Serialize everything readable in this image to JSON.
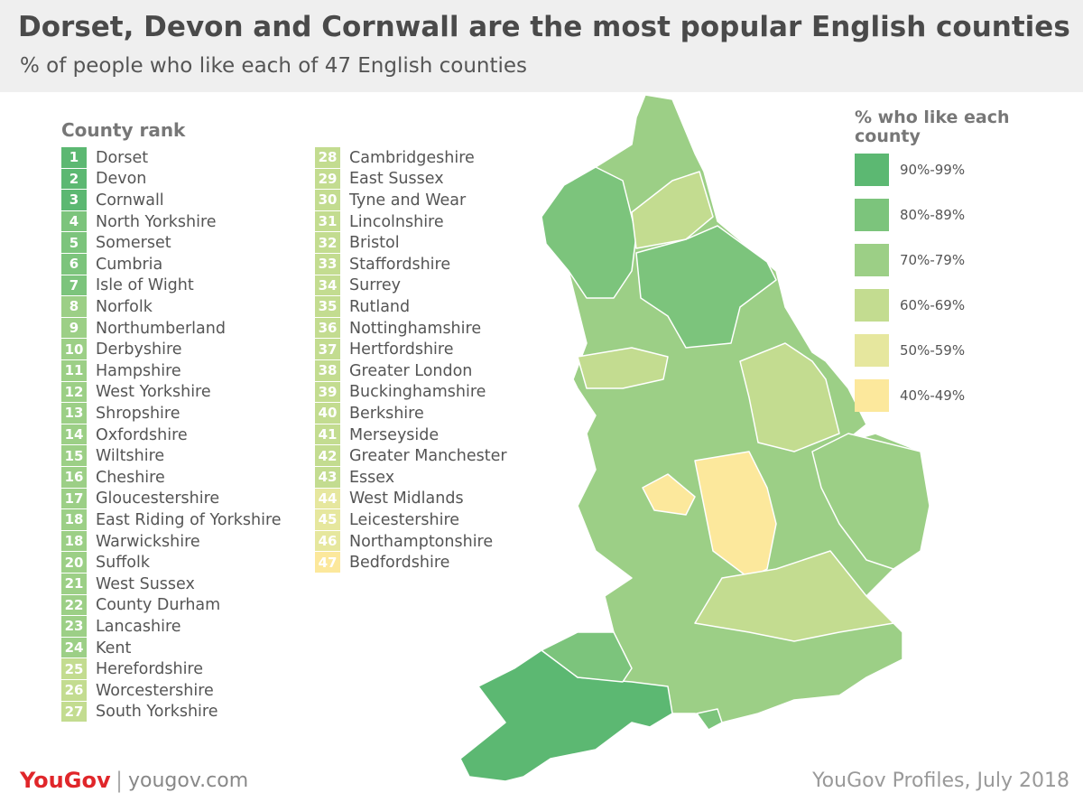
{
  "header": {
    "title": "Dorset, Devon and Cornwall are the most popular English counties",
    "subtitle": "% of people who like each of 47 English counties"
  },
  "ranking": {
    "title": "County rank",
    "items": [
      {
        "rank": 1,
        "name": "Dorset",
        "color": "#5cb872"
      },
      {
        "rank": 2,
        "name": "Devon",
        "color": "#5cb872"
      },
      {
        "rank": 3,
        "name": "Cornwall",
        "color": "#5cb872"
      },
      {
        "rank": 4,
        "name": "North Yorkshire",
        "color": "#7cc47c"
      },
      {
        "rank": 5,
        "name": "Somerset",
        "color": "#7cc47c"
      },
      {
        "rank": 6,
        "name": "Cumbria",
        "color": "#7cc47c"
      },
      {
        "rank": 7,
        "name": "Isle of Wight",
        "color": "#7cc47c"
      },
      {
        "rank": 8,
        "name": "Norfolk",
        "color": "#9ccf86"
      },
      {
        "rank": 9,
        "name": "Northumberland",
        "color": "#9ccf86"
      },
      {
        "rank": 10,
        "name": "Derbyshire",
        "color": "#9ccf86"
      },
      {
        "rank": 11,
        "name": "Hampshire",
        "color": "#9ccf86"
      },
      {
        "rank": 12,
        "name": "West Yorkshire",
        "color": "#9ccf86"
      },
      {
        "rank": 13,
        "name": "Shropshire",
        "color": "#9ccf86"
      },
      {
        "rank": 14,
        "name": "Oxfordshire",
        "color": "#9ccf86"
      },
      {
        "rank": 15,
        "name": "Wiltshire",
        "color": "#9ccf86"
      },
      {
        "rank": 16,
        "name": "Cheshire",
        "color": "#9ccf86"
      },
      {
        "rank": 17,
        "name": "Gloucestershire",
        "color": "#9ccf86"
      },
      {
        "rank": 18,
        "name": "East Riding of Yorkshire",
        "color": "#9ccf86"
      },
      {
        "rank": 18,
        "name": "Warwickshire",
        "color": "#9ccf86"
      },
      {
        "rank": 20,
        "name": "Suffolk",
        "color": "#9ccf86"
      },
      {
        "rank": 21,
        "name": "West Sussex",
        "color": "#9ccf86"
      },
      {
        "rank": 22,
        "name": "County Durham",
        "color": "#9ccf86"
      },
      {
        "rank": 23,
        "name": "Lancashire",
        "color": "#9ccf86"
      },
      {
        "rank": 24,
        "name": "Kent",
        "color": "#9ccf86"
      },
      {
        "rank": 25,
        "name": "Herefordshire",
        "color": "#c3dc90"
      },
      {
        "rank": 26,
        "name": "Worcestershire",
        "color": "#c3dc90"
      },
      {
        "rank": 27,
        "name": "South Yorkshire",
        "color": "#c3dc90"
      },
      {
        "rank": 28,
        "name": "Cambridgeshire",
        "color": "#c3dc90"
      },
      {
        "rank": 29,
        "name": "East Sussex",
        "color": "#c3dc90"
      },
      {
        "rank": 30,
        "name": "Tyne and Wear",
        "color": "#c3dc90"
      },
      {
        "rank": 31,
        "name": "Lincolnshire",
        "color": "#c3dc90"
      },
      {
        "rank": 32,
        "name": "Bristol",
        "color": "#c3dc90"
      },
      {
        "rank": 33,
        "name": "Staffordshire",
        "color": "#c3dc90"
      },
      {
        "rank": 34,
        "name": "Surrey",
        "color": "#c3dc90"
      },
      {
        "rank": 35,
        "name": "Rutland",
        "color": "#c3dc90"
      },
      {
        "rank": 36,
        "name": "Nottinghamshire",
        "color": "#c3dc90"
      },
      {
        "rank": 37,
        "name": "Hertfordshire",
        "color": "#c3dc90"
      },
      {
        "rank": 38,
        "name": "Greater London",
        "color": "#c3dc90"
      },
      {
        "rank": 39,
        "name": "Buckinghamshire",
        "color": "#c3dc90"
      },
      {
        "rank": 40,
        "name": "Berkshire",
        "color": "#c3dc90"
      },
      {
        "rank": 41,
        "name": "Merseyside",
        "color": "#c3dc90"
      },
      {
        "rank": 42,
        "name": "Greater Manchester",
        "color": "#c3dc90"
      },
      {
        "rank": 43,
        "name": "Essex",
        "color": "#c3dc90"
      },
      {
        "rank": 44,
        "name": "West Midlands",
        "color": "#e6e79e"
      },
      {
        "rank": 45,
        "name": "Leicestershire",
        "color": "#e6e79e"
      },
      {
        "rank": 46,
        "name": "Northamptonshire",
        "color": "#e6e79e"
      },
      {
        "rank": 47,
        "name": "Bedfordshire",
        "color": "#fce89c"
      }
    ]
  },
  "legend": {
    "title": "% who like each county",
    "items": [
      {
        "label": "90%-99%",
        "color": "#5cb872"
      },
      {
        "label": "80%-89%",
        "color": "#7cc47c"
      },
      {
        "label": "70%-79%",
        "color": "#9ccf86"
      },
      {
        "label": "60%-69%",
        "color": "#c3dc90"
      },
      {
        "label": "50%-59%",
        "color": "#e6e79e"
      },
      {
        "label": "40%-49%",
        "color": "#fce89c"
      }
    ]
  },
  "footer": {
    "brand": "YouGov",
    "site": "yougov.com",
    "source": "YouGov Profiles, July 2018"
  }
}
